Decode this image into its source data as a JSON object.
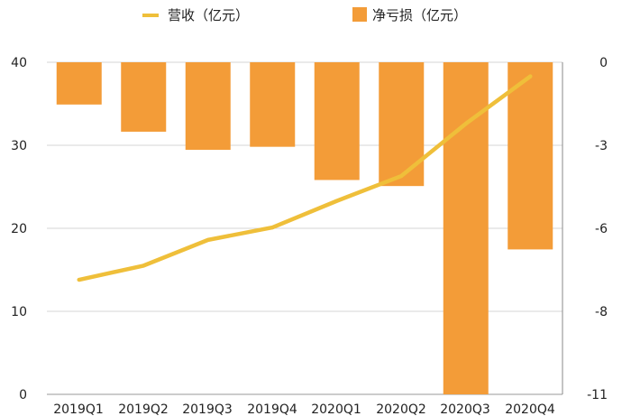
{
  "chart_data": {
    "type": "bar+line",
    "categories": [
      "2019Q1",
      "2019Q2",
      "2019Q3",
      "2019Q4",
      "2020Q1",
      "2020Q2",
      "2020Q3",
      "2020Q4"
    ],
    "series": [
      {
        "name": "营收（亿元）",
        "kind": "line",
        "axis": "left",
        "color": "#efbf3a",
        "values": [
          13.8,
          15.5,
          18.6,
          20.1,
          23.3,
          26.3,
          32.6,
          38.3
        ]
      },
      {
        "name": "净亏损（亿元）",
        "kind": "bar",
        "axis": "right",
        "color": "#f39c38",
        "values": [
          -1.4,
          -2.3,
          -2.9,
          -2.8,
          -3.9,
          -4.1,
          -11.0,
          -6.2
        ]
      }
    ],
    "left_axis": {
      "range": [
        0,
        40
      ],
      "ticks": [
        "0",
        "10",
        "20",
        "30",
        "40"
      ]
    },
    "right_axis": {
      "range": [
        -11,
        0
      ],
      "ticks": [
        "0",
        "-3",
        "-6",
        "-8",
        "-11"
      ],
      "tick_values": [
        0,
        -3,
        -6,
        -8,
        -11
      ]
    },
    "legend": [
      {
        "label": "营收（亿元）",
        "marker": "line",
        "color": "#efbf3a"
      },
      {
        "label": "净亏损（亿元）",
        "marker": "square",
        "color": "#f39c38"
      }
    ],
    "legend_position": "top",
    "grid": "horizontal"
  }
}
